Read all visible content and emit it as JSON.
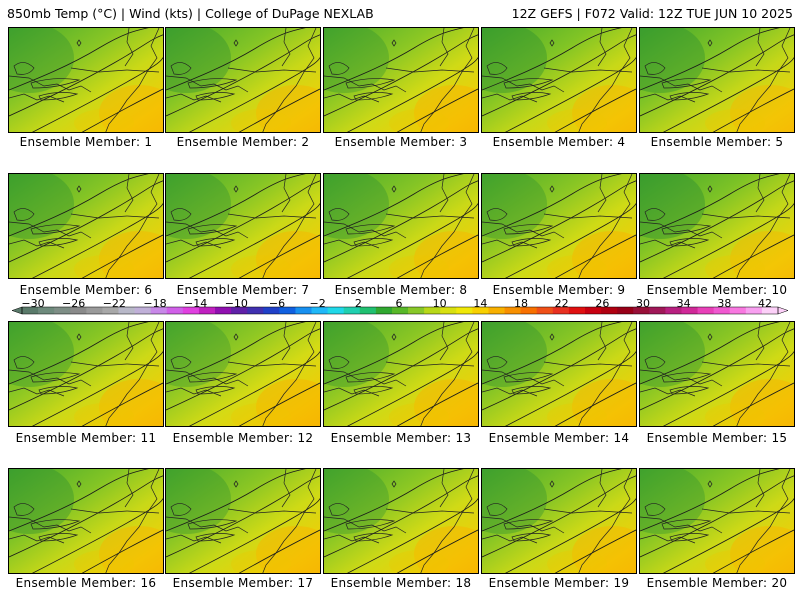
{
  "header": {
    "title_left": "850mb Temp (°C) | Wind (kts) | College of DuPage NEXLAB",
    "title_right": "12Z GEFS | F072 Valid: 12Z TUE JUN 10 2025"
  },
  "panels": [
    {
      "label": "Ensemble Member: 1",
      "warmth": 0.55
    },
    {
      "label": "Ensemble Member: 2",
      "warmth": 0.5
    },
    {
      "label": "Ensemble Member: 3",
      "warmth": 0.62
    },
    {
      "label": "Ensemble Member: 4",
      "warmth": 0.48
    },
    {
      "label": "Ensemble Member: 5",
      "warmth": 0.45
    },
    {
      "label": "Ensemble Member: 6",
      "warmth": 0.52
    },
    {
      "label": "Ensemble Member: 7",
      "warmth": 0.55
    },
    {
      "label": "Ensemble Member: 8",
      "warmth": 0.55
    },
    {
      "label": "Ensemble Member: 9",
      "warmth": 0.6
    },
    {
      "label": "Ensemble Member: 10",
      "warmth": 0.42
    },
    {
      "label": "Ensemble Member: 11",
      "warmth": 0.58
    },
    {
      "label": "Ensemble Member: 12",
      "warmth": 0.68
    },
    {
      "label": "Ensemble Member: 13",
      "warmth": 0.6
    },
    {
      "label": "Ensemble Member: 14",
      "warmth": 0.55
    },
    {
      "label": "Ensemble Member: 15",
      "warmth": 0.6
    },
    {
      "label": "Ensemble Member: 16",
      "warmth": 0.5
    },
    {
      "label": "Ensemble Member: 17",
      "warmth": 0.6
    },
    {
      "label": "Ensemble Member: 18",
      "warmth": 0.62
    },
    {
      "label": "Ensemble Member: 19",
      "warmth": 0.55
    },
    {
      "label": "Ensemble Member: 20",
      "warmth": 0.58
    }
  ],
  "colorbar": {
    "ticks": [
      "−30",
      "−26",
      "−22",
      "−18",
      "−14",
      "−10",
      "−6",
      "−2",
      "2",
      "6",
      "10",
      "14",
      "18",
      "22",
      "26",
      "30",
      "34",
      "38",
      "42"
    ],
    "colors": [
      "#5a7a6a",
      "#6e8a7c",
      "#7e8e86",
      "#8a8a8a",
      "#9a9a9a",
      "#a8a8a8",
      "#b8b8c8",
      "#c0b0d8",
      "#c888e8",
      "#d060e8",
      "#e040e0",
      "#c020c0",
      "#9010b0",
      "#6020a8",
      "#4030b0",
      "#2040c8",
      "#1060e0",
      "#1890f0",
      "#20b8f8",
      "#20d8e8",
      "#20d0b0",
      "#20c070",
      "#30a830",
      "#58b828",
      "#88c828",
      "#b8d818",
      "#d8e010",
      "#f0e808",
      "#f8d000",
      "#f8b000",
      "#f89000",
      "#f87000",
      "#f05018",
      "#e83020",
      "#e01010",
      "#c80010",
      "#b00010",
      "#980018",
      "#981038",
      "#a01858",
      "#b82080",
      "#d02898",
      "#e840b8",
      "#f058d0",
      "#f878e0",
      "#f8a0f0",
      "#fcd0f8"
    ]
  }
}
